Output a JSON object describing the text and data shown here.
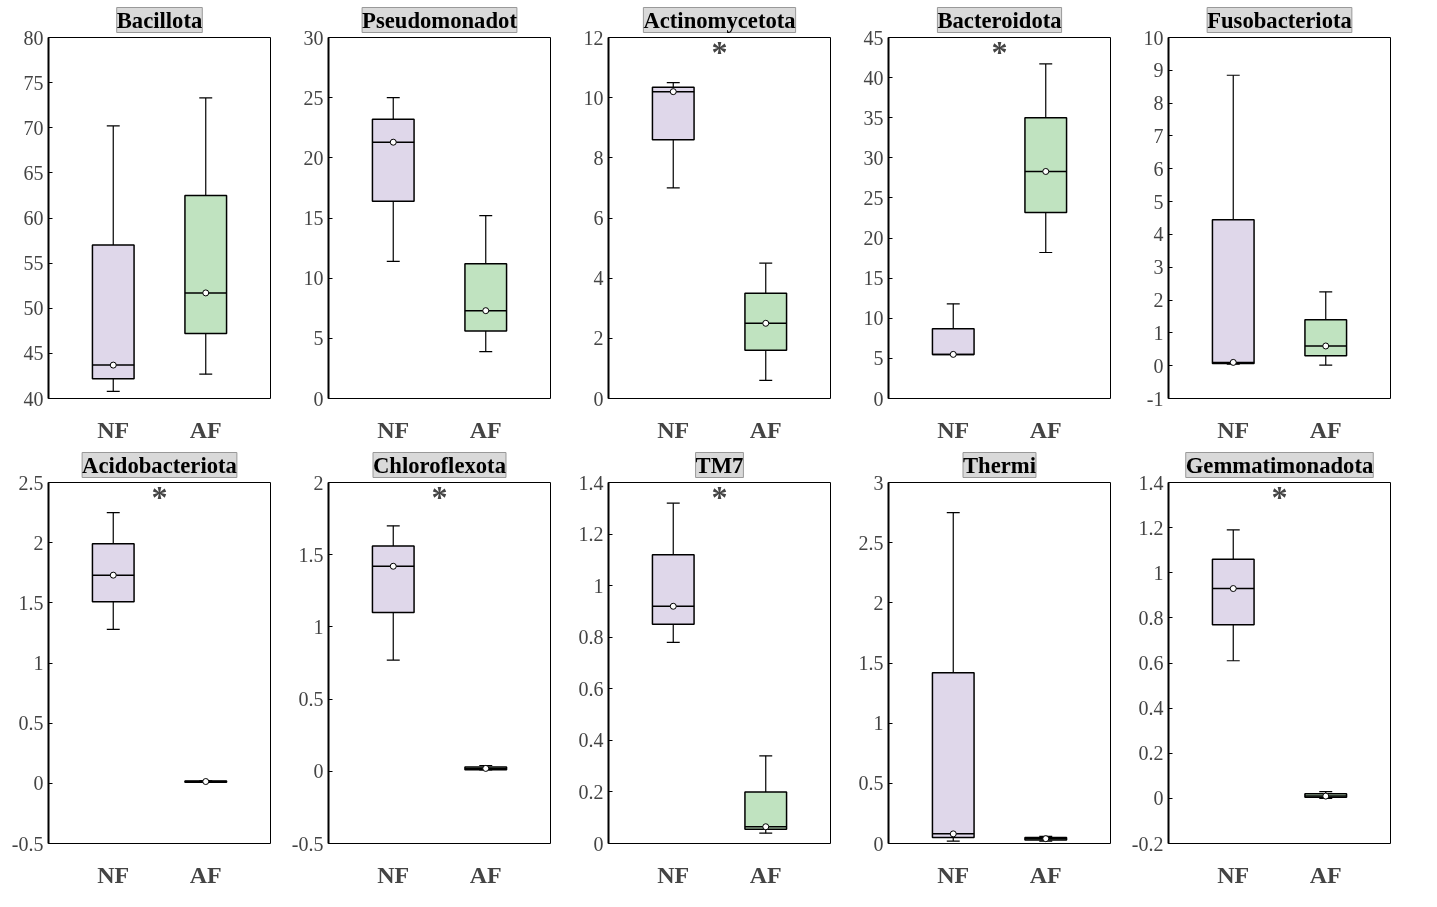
{
  "chart_data": [
    {
      "type": "box",
      "title": "Bacillota",
      "categories": [
        "NF",
        "AF"
      ],
      "colors": [
        "#dfd7ea",
        "#c0e3c0"
      ],
      "ylim": [
        40,
        80
      ],
      "yticks": [
        40,
        45,
        50,
        55,
        60,
        65,
        70,
        75,
        80
      ],
      "boxes": [
        {
          "low": 40.8,
          "q1": 42.2,
          "median": 43.7,
          "q3": 57.0,
          "high": 70.2,
          "mean": 43.7
        },
        {
          "low": 42.7,
          "q1": 47.2,
          "median": 51.7,
          "q3": 62.5,
          "high": 73.3,
          "mean": 51.7
        }
      ]
    },
    {
      "type": "box",
      "title": "Pseudomonadot",
      "categories": [
        "NF",
        "AF"
      ],
      "colors": [
        "#dfd7ea",
        "#c0e3c0"
      ],
      "ylim": [
        0,
        30
      ],
      "yticks": [
        0,
        5,
        10,
        15,
        20,
        25,
        30
      ],
      "boxes": [
        {
          "low": 11.4,
          "q1": 16.4,
          "median": 21.3,
          "q3": 23.2,
          "high": 25.0,
          "mean": 21.3
        },
        {
          "low": 3.9,
          "q1": 5.6,
          "median": 7.3,
          "q3": 11.2,
          "high": 15.2,
          "mean": 7.3
        }
      ]
    },
    {
      "type": "box",
      "title": "Actinomycetota",
      "categories": [
        "NF",
        "AF"
      ],
      "colors": [
        "#dfd7ea",
        "#c0e3c0"
      ],
      "ylim": [
        0,
        12
      ],
      "yticks": [
        0,
        2,
        4,
        6,
        8,
        10,
        12
      ],
      "annotations": [
        "*"
      ],
      "boxes": [
        {
          "low": 7.0,
          "q1": 8.6,
          "median": 10.2,
          "q3": 10.35,
          "high": 10.5,
          "mean": 10.2
        },
        {
          "low": 0.6,
          "q1": 1.6,
          "median": 2.5,
          "q3": 3.5,
          "high": 4.5,
          "mean": 2.5
        }
      ]
    },
    {
      "type": "box",
      "title": "Bacteroidota",
      "categories": [
        "NF",
        "AF"
      ],
      "colors": [
        "#dfd7ea",
        "#c0e3c0"
      ],
      "ylim": [
        0,
        45
      ],
      "yticks": [
        0,
        5,
        10,
        15,
        20,
        25,
        30,
        35,
        40,
        45
      ],
      "annotations": [
        "*"
      ],
      "boxes": [
        {
          "low": 5.5,
          "q1": 5.5,
          "median": 5.5,
          "q3": 8.7,
          "high": 11.8,
          "mean": 5.5
        },
        {
          "low": 18.2,
          "q1": 23.2,
          "median": 28.3,
          "q3": 35.0,
          "high": 41.7,
          "mean": 28.3
        }
      ]
    },
    {
      "type": "box",
      "title": "Fusobacteriota",
      "categories": [
        "NF",
        "AF"
      ],
      "colors": [
        "#dfd7ea",
        "#c0e3c0"
      ],
      "ylim": [
        -1,
        10
      ],
      "yticks": [
        -1,
        0,
        1,
        2,
        3,
        4,
        5,
        6,
        7,
        8,
        9,
        10
      ],
      "boxes": [
        {
          "low": 0.05,
          "q1": 0.07,
          "median": 0.1,
          "q3": 4.45,
          "high": 8.85,
          "mean": 0.1
        },
        {
          "low": 0.02,
          "q1": 0.3,
          "median": 0.6,
          "q3": 1.4,
          "high": 2.25,
          "mean": 0.6
        }
      ]
    },
    {
      "type": "box",
      "title": "Acidobacteriota",
      "categories": [
        "NF",
        "AF"
      ],
      "colors": [
        "#dfd7ea",
        "#c0e3c0"
      ],
      "ylim": [
        -0.5,
        2.5
      ],
      "yticks": [
        -0.5,
        0,
        0.5,
        1,
        1.5,
        2,
        2.5
      ],
      "annotations": [
        "*"
      ],
      "boxes": [
        {
          "low": 1.28,
          "q1": 1.51,
          "median": 1.73,
          "q3": 1.99,
          "high": 2.25,
          "mean": 1.73
        },
        {
          "low": 0.01,
          "q1": 0.01,
          "median": 0.015,
          "q3": 0.02,
          "high": 0.02,
          "mean": 0.015
        }
      ]
    },
    {
      "type": "box",
      "title": "Chloroflexota",
      "categories": [
        "NF",
        "AF"
      ],
      "colors": [
        "#dfd7ea",
        "#c0e3c0"
      ],
      "ylim": [
        -0.5,
        2
      ],
      "yticks": [
        -0.5,
        0,
        0.5,
        1,
        1.5,
        2
      ],
      "annotations": [
        "*"
      ],
      "boxes": [
        {
          "low": 0.77,
          "q1": 1.1,
          "median": 1.42,
          "q3": 1.56,
          "high": 1.7,
          "mean": 1.42
        },
        {
          "low": 0.01,
          "q1": 0.01,
          "median": 0.02,
          "q3": 0.03,
          "high": 0.04,
          "mean": 0.02
        }
      ]
    },
    {
      "type": "box",
      "title": "TM7",
      "categories": [
        "NF",
        "AF"
      ],
      "colors": [
        "#dfd7ea",
        "#c0e3c0"
      ],
      "ylim": [
        0,
        1.4
      ],
      "yticks": [
        0,
        0.2,
        0.4,
        0.6,
        0.8,
        1,
        1.2,
        1.4
      ],
      "annotations": [
        "*"
      ],
      "boxes": [
        {
          "low": 0.78,
          "q1": 0.85,
          "median": 0.92,
          "q3": 1.12,
          "high": 1.32,
          "mean": 0.92
        },
        {
          "low": 0.04,
          "q1": 0.055,
          "median": 0.065,
          "q3": 0.2,
          "high": 0.34,
          "mean": 0.065
        }
      ]
    },
    {
      "type": "box",
      "title": "Thermi",
      "categories": [
        "NF",
        "AF"
      ],
      "colors": [
        "#dfd7ea",
        "#c0e3c0"
      ],
      "ylim": [
        0,
        3
      ],
      "yticks": [
        0,
        0.5,
        1,
        1.5,
        2,
        2.5,
        3
      ],
      "boxes": [
        {
          "low": 0.02,
          "q1": 0.05,
          "median": 0.08,
          "q3": 1.42,
          "high": 2.75,
          "mean": 0.08
        },
        {
          "low": 0.02,
          "q1": 0.03,
          "median": 0.04,
          "q3": 0.05,
          "high": 0.06,
          "mean": 0.04
        }
      ]
    },
    {
      "type": "box",
      "title": "Gemmatimonadota",
      "categories": [
        "NF",
        "AF"
      ],
      "colors": [
        "#dfd7ea",
        "#c0e3c0"
      ],
      "ylim": [
        -0.2,
        1.4
      ],
      "yticks": [
        -0.2,
        0,
        0.2,
        0.4,
        0.6,
        0.8,
        1,
        1.2,
        1.4
      ],
      "annotations": [
        "*"
      ],
      "boxes": [
        {
          "low": 0.61,
          "q1": 0.77,
          "median": 0.93,
          "q3": 1.06,
          "high": 1.19,
          "mean": 0.93
        },
        {
          "low": 0.0,
          "q1": 0.005,
          "median": 0.01,
          "q3": 0.02,
          "high": 0.03,
          "mean": 0.01
        }
      ]
    }
  ]
}
